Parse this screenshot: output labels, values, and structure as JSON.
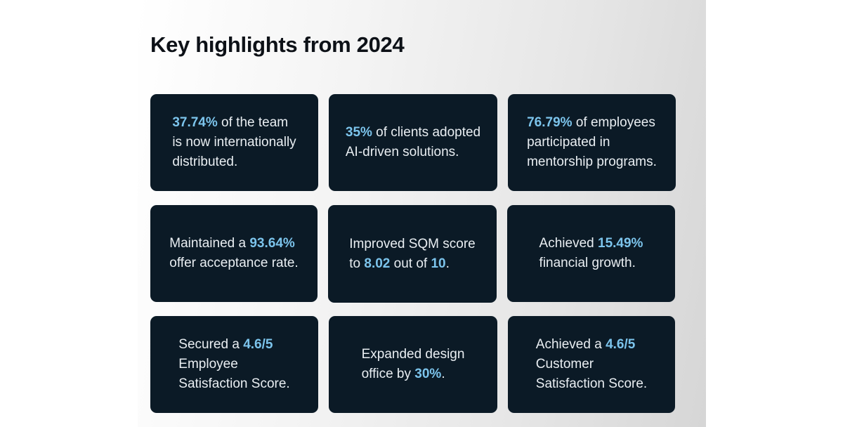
{
  "page": {
    "title": "Key highlights from 2024",
    "accent_color": "#7cc4ec",
    "card_color": "#0b1a26"
  },
  "cards": [
    {
      "lines": [
        [
          {
            "t": "37.74%",
            "h": true
          },
          {
            "t": " of the team"
          }
        ],
        [
          {
            "t": "is now internationally"
          }
        ],
        [
          {
            "t": "distributed."
          }
        ]
      ]
    },
    {
      "lines": [
        [
          {
            "t": "35%",
            "h": true
          },
          {
            "t": " of clients adopted"
          }
        ],
        [
          {
            "t": "AI-driven solutions."
          }
        ]
      ]
    },
    {
      "lines": [
        [
          {
            "t": "76.79%",
            "h": true
          },
          {
            "t": " of employees"
          }
        ],
        [
          {
            "t": "participated in"
          }
        ],
        [
          {
            "t": "mentorship programs."
          }
        ]
      ]
    },
    {
      "lines": [
        [
          {
            "t": "Maintained a "
          },
          {
            "t": "93.64%",
            "h": true
          }
        ],
        [
          {
            "t": "offer acceptance rate."
          }
        ]
      ]
    },
    {
      "lines": [
        [
          {
            "t": "Improved SQM score"
          }
        ],
        [
          {
            "t": "to "
          },
          {
            "t": "8.02",
            "h": true
          },
          {
            "t": " out of "
          },
          {
            "t": "10",
            "h": true
          },
          {
            "t": "."
          }
        ]
      ]
    },
    {
      "lines": [
        [
          {
            "t": "Achieved "
          },
          {
            "t": "15.49%",
            "h": true
          }
        ],
        [
          {
            "t": "financial growth."
          }
        ]
      ]
    },
    {
      "lines": [
        [
          {
            "t": "Secured a "
          },
          {
            "t": "4.6/5",
            "h": true
          }
        ],
        [
          {
            "t": "Employee"
          }
        ],
        [
          {
            "t": "Satisfaction Score."
          }
        ]
      ]
    },
    {
      "lines": [
        [
          {
            "t": "Expanded design"
          }
        ],
        [
          {
            "t": "office by "
          },
          {
            "t": "30%",
            "h": true
          },
          {
            "t": "."
          }
        ]
      ]
    },
    {
      "lines": [
        [
          {
            "t": "Achieved a "
          },
          {
            "t": "4.6/5",
            "h": true
          }
        ],
        [
          {
            "t": "Customer"
          }
        ],
        [
          {
            "t": "Satisfaction Score."
          }
        ]
      ]
    }
  ]
}
